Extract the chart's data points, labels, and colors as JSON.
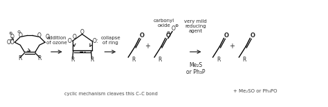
{
  "figsize": [
    4.74,
    1.55
  ],
  "dpi": 100,
  "bg": "white",
  "tc": "#2a2a2a",
  "lc": "#2a2a2a",
  "gray": "#888888",
  "step1": "addition\nof ozone",
  "step2": "collapse\nof ring",
  "step3_top": "very mild\nreducing\nagent",
  "reagents": "Me₂S\nor Ph₃P",
  "carbonyl_oxide": "carbonyl\noxide",
  "bottom_note": "cyclic mechanism cleaves this C–C bond",
  "byproduct": "+ Me₂SO or Ph₃PO"
}
